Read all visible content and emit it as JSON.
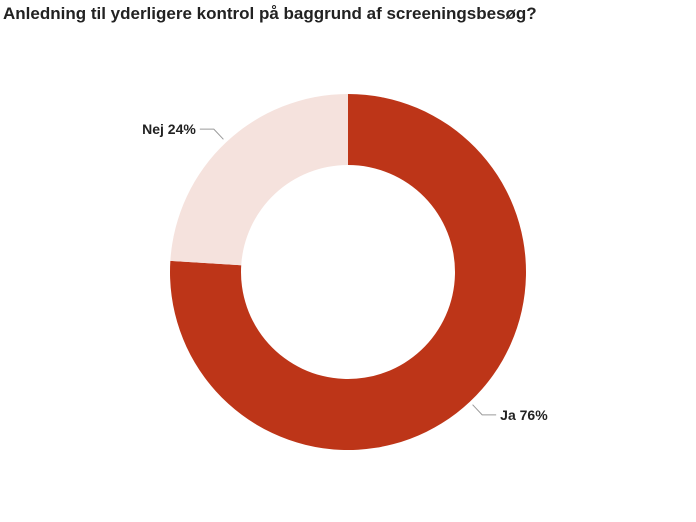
{
  "chart_data": {
    "type": "pie",
    "title": "Anledning til yderligere kontrol på baggrund af screeningsbesøg?",
    "donut": true,
    "slices": [
      {
        "label": "Ja",
        "value": 76,
        "display": "Ja 76%",
        "color": "#bd3518"
      },
      {
        "label": "Nej",
        "value": 24,
        "display": "Nej 24%",
        "color": "#f5e2dd"
      }
    ],
    "legend": "none"
  }
}
